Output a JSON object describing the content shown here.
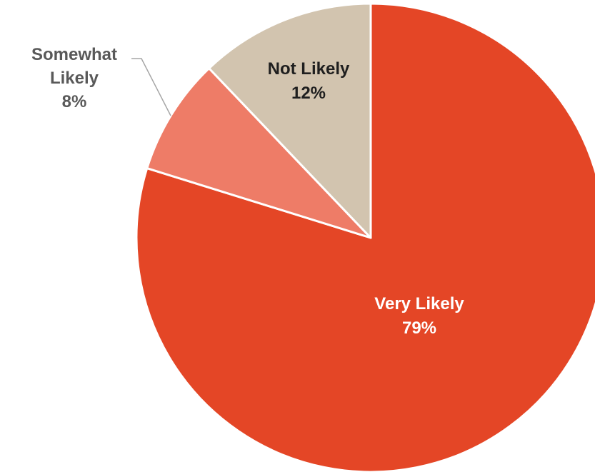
{
  "chart_data": {
    "type": "pie",
    "start_angle_deg": 0,
    "direction": "clockwise",
    "slices": [
      {
        "label": "Very Likely",
        "value": 79,
        "value_label": "79%",
        "color": "#E44626",
        "label_color": "#ffffff"
      },
      {
        "label": "Somewhat Likely",
        "value": 8,
        "value_label": "8%",
        "color": "#EE7C67",
        "label_color": "#595959",
        "label_lines": [
          "Somewhat",
          "Likely"
        ],
        "leader_line": true
      },
      {
        "label": "Not Likely",
        "value": 12,
        "value_label": "12%",
        "color": "#D2C4AF",
        "label_color": "#1f1f1f"
      }
    ],
    "slice_border_color": "#ffffff",
    "leader_color": "#a6a6a6",
    "legend": "none"
  }
}
